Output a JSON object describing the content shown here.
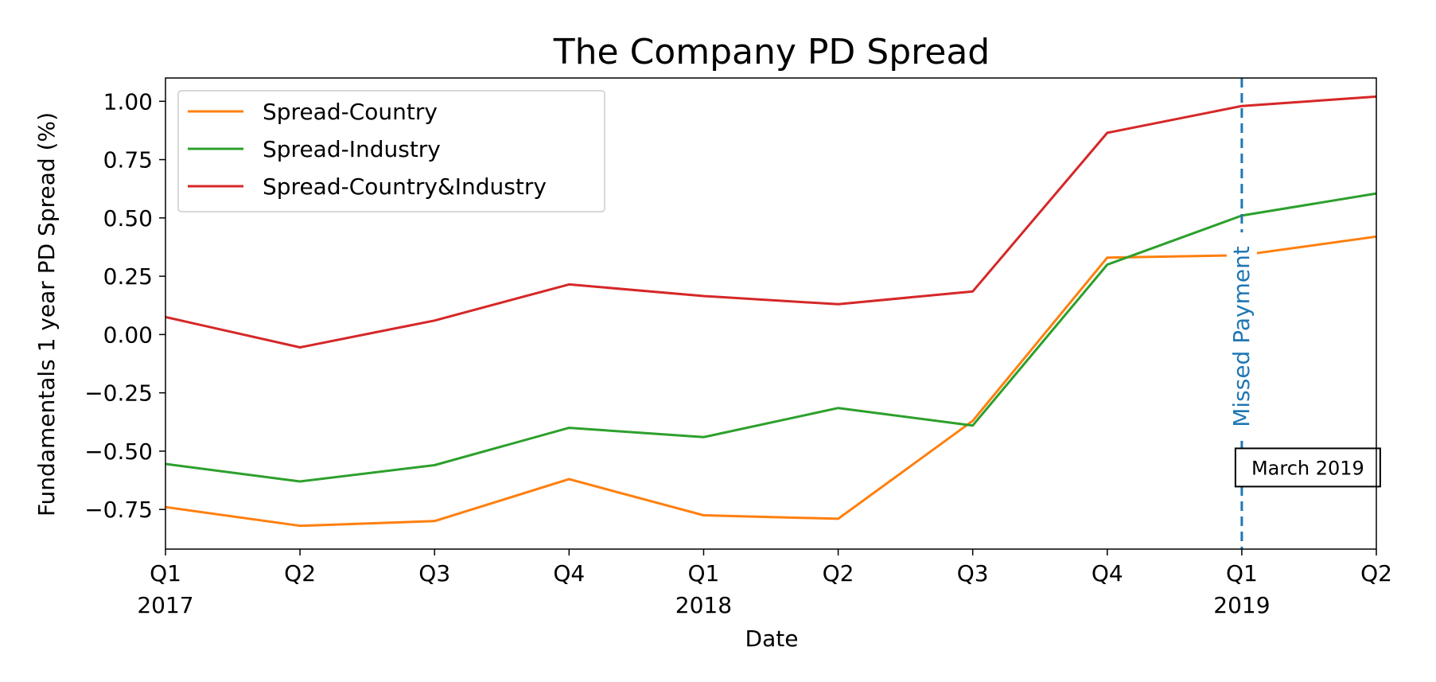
{
  "chart_data": {
    "type": "line",
    "title": "The Company PD Spread",
    "xlabel": "Date",
    "ylabel": "Fundamentals 1 year PD Spread (%)",
    "ylim": [
      -0.92,
      1.1
    ],
    "grid": false,
    "legend_position": "top-left",
    "x": [
      0,
      1,
      2,
      3,
      4,
      5,
      6,
      7,
      8,
      9
    ],
    "x_ticks": [
      {
        "x": 0,
        "label": "Q1",
        "sublabel": "2017"
      },
      {
        "x": 1,
        "label": "Q2",
        "sublabel": ""
      },
      {
        "x": 2,
        "label": "Q3",
        "sublabel": ""
      },
      {
        "x": 3,
        "label": "Q4",
        "sublabel": ""
      },
      {
        "x": 4,
        "label": "Q1",
        "sublabel": "2018"
      },
      {
        "x": 5,
        "label": "Q2",
        "sublabel": ""
      },
      {
        "x": 6,
        "label": "Q3",
        "sublabel": ""
      },
      {
        "x": 7,
        "label": "Q4",
        "sublabel": ""
      },
      {
        "x": 8,
        "label": "Q1",
        "sublabel": "2019"
      },
      {
        "x": 9,
        "label": "Q2",
        "sublabel": ""
      }
    ],
    "y_ticks": [
      {
        "value": 1.0,
        "label": "1.00"
      },
      {
        "value": 0.75,
        "label": "0.75"
      },
      {
        "value": 0.5,
        "label": "0.50"
      },
      {
        "value": 0.25,
        "label": "0.25"
      },
      {
        "value": 0.0,
        "label": "0.00"
      },
      {
        "value": -0.25,
        "label": "−0.25"
      },
      {
        "value": -0.5,
        "label": "−0.50"
      },
      {
        "value": -0.75,
        "label": "−0.75"
      }
    ],
    "series": [
      {
        "name": "Spread-Country",
        "color": "#ff7f0e",
        "points": [
          [
            0,
            -0.74
          ],
          [
            1,
            -0.82
          ],
          [
            2,
            -0.8
          ],
          [
            3,
            -0.62
          ],
          [
            4,
            -0.775
          ],
          [
            5,
            -0.79
          ],
          [
            6,
            -0.37
          ],
          [
            7,
            0.33
          ],
          [
            8,
            0.34
          ],
          [
            9,
            0.42
          ]
        ]
      },
      {
        "name": "Spread-Industry",
        "color": "#2ca02c",
        "points": [
          [
            0,
            -0.555
          ],
          [
            1,
            -0.63
          ],
          [
            2,
            -0.56
          ],
          [
            3,
            -0.4
          ],
          [
            4,
            -0.44
          ],
          [
            5,
            -0.315
          ],
          [
            6,
            -0.39
          ],
          [
            7,
            0.3
          ],
          [
            8,
            0.51
          ],
          [
            9,
            0.605
          ]
        ]
      },
      {
        "name": "Spread-Country&Industry",
        "color": "#d62728",
        "points": [
          [
            0,
            0.075
          ],
          [
            1,
            -0.055
          ],
          [
            2,
            0.06
          ],
          [
            3,
            0.215
          ],
          [
            4,
            0.165
          ],
          [
            5,
            0.13
          ],
          [
            6,
            0.185
          ],
          [
            7,
            0.865
          ],
          [
            8,
            0.98
          ],
          [
            9,
            1.02
          ]
        ]
      }
    ],
    "annotations": [
      {
        "type": "vline",
        "x": 8,
        "label": "Missed Payment",
        "color": "#1f77b4",
        "style": "dashed"
      },
      {
        "type": "textbox",
        "x": 8,
        "y": -0.57,
        "label": "March 2019"
      }
    ]
  }
}
